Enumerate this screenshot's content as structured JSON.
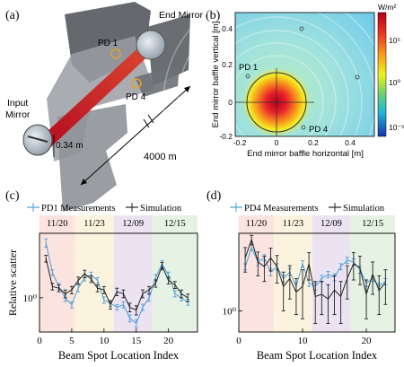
{
  "panels": {
    "a": "(a)",
    "b": "(b)",
    "c": "(c)",
    "d": "(d)"
  },
  "panel_a": {
    "end_mirror": "End Mirror",
    "input_mirror_line1": "Input",
    "input_mirror_line2": "Mirror",
    "pd1": "PD 1",
    "pd4": "PD 4",
    "dist_small": "0.34 m",
    "dist_large": "4000 m"
  },
  "panel_b": {
    "xlabel": "End mirror baffle horizontal [m]",
    "ylabel": "End mirror baffle vertical [m]",
    "colorbar_unit": "W/m²",
    "colorbar_ticks": [
      "10⁵",
      "10⁰",
      "10⁻⁵"
    ],
    "pd1": "PD 1",
    "pd4": "PD 4",
    "xticks": [
      "-0.2",
      "0",
      "0.2",
      "0.4"
    ],
    "yticks": [
      "0.4",
      "0.2",
      "0",
      "-0.2"
    ]
  },
  "chart_data": [
    {
      "type": "line",
      "panel": "c",
      "xlabel": "Beam Spot Location Index",
      "ylabel": "Relative scatter",
      "xlim": [
        0,
        24.5
      ],
      "log_y": true,
      "ylim": [
        0.45,
        4.5
      ],
      "yticks": [
        {
          "v": 1,
          "label": "10⁰"
        }
      ],
      "xticks": [
        0,
        5,
        10,
        15,
        20
      ],
      "date_bands": [
        {
          "label": "11/20",
          "from": 0,
          "to": 5.5,
          "color": "#fbe3df"
        },
        {
          "label": "11/23",
          "from": 5.5,
          "to": 11.5,
          "color": "#fcf3df"
        },
        {
          "label": "12/09",
          "from": 11.5,
          "to": 17.5,
          "color": "#ebe3f2"
        },
        {
          "label": "12/15",
          "from": 17.5,
          "to": 24.5,
          "color": "#e6f2e3"
        }
      ],
      "series": [
        {
          "name": "PD1 Measurements",
          "color": "#4f9fd6",
          "x": [
            1,
            2,
            3,
            4,
            5,
            6,
            7,
            8,
            9,
            10,
            11,
            12,
            13,
            14,
            15,
            16,
            17,
            18,
            19,
            20,
            21,
            22,
            23
          ],
          "y": [
            3.6,
            1.8,
            1.3,
            1.0,
            0.85,
            1.25,
            1.6,
            1.7,
            1.5,
            0.95,
            0.88,
            0.8,
            0.85,
            0.62,
            0.55,
            0.8,
            1.0,
            1.6,
            2.2,
            1.7,
            1.1,
            1.0,
            0.9
          ],
          "err": [
            0.35,
            0.12,
            0.1,
            0.08,
            0.06,
            0.1,
            0.12,
            0.12,
            0.1,
            0.07,
            0.06,
            0.05,
            0.06,
            0.05,
            0.05,
            0.06,
            0.08,
            0.12,
            0.18,
            0.12,
            0.08,
            0.07,
            0.06
          ]
        },
        {
          "name": "Simulation",
          "color": "#222222",
          "x": [
            1,
            2,
            3,
            4,
            5,
            6,
            7,
            8,
            9,
            10,
            11,
            12,
            13,
            14,
            15,
            16,
            17,
            18,
            19,
            20,
            21,
            22,
            23
          ],
          "y": [
            2.5,
            1.3,
            1.25,
            1.1,
            1.2,
            1.5,
            1.75,
            1.55,
            1.25,
            1.2,
            0.85,
            1.15,
            1.1,
            0.8,
            0.75,
            1.1,
            1.2,
            1.4,
            2.1,
            1.5,
            1.35,
            1.1,
            1.0
          ],
          "err": [
            0.2,
            0.1,
            0.1,
            0.1,
            0.1,
            0.12,
            0.15,
            0.12,
            0.1,
            0.1,
            0.08,
            0.1,
            0.1,
            0.08,
            0.08,
            0.1,
            0.1,
            0.12,
            0.18,
            0.12,
            0.11,
            0.1,
            0.09
          ]
        }
      ]
    },
    {
      "type": "line",
      "panel": "d",
      "xlabel": "Beam Spot Location Index",
      "ylabel": "",
      "xlim": [
        0,
        24.5
      ],
      "log_y": true,
      "ylim": [
        0.55,
        9
      ],
      "yticks": [
        {
          "v": 1,
          "label": "10⁰"
        }
      ],
      "xticks": [
        0,
        10,
        20
      ],
      "date_bands": [
        {
          "label": "11/20",
          "from": 0,
          "to": 5.5,
          "color": "#fbe3df"
        },
        {
          "label": "11/23",
          "from": 5.5,
          "to": 11.5,
          "color": "#fcf3df"
        },
        {
          "label": "12/09",
          "from": 11.5,
          "to": 17.5,
          "color": "#ebe3f2"
        },
        {
          "label": "12/15",
          "from": 17.5,
          "to": 24.5,
          "color": "#e6f2e3"
        }
      ],
      "series": [
        {
          "name": "PD4 Measurements",
          "color": "#4f9fd6",
          "x": [
            1,
            2,
            3,
            4,
            5,
            6,
            7,
            8,
            9,
            10,
            11,
            12,
            13,
            14,
            15,
            16,
            17,
            18,
            19,
            20,
            21,
            22,
            23
          ],
          "y": [
            3.5,
            6.0,
            4.0,
            4.5,
            3.0,
            3.5,
            2.5,
            3.0,
            2.0,
            3.8,
            2.2,
            2.0,
            2.5,
            2.8,
            2.6,
            3.5,
            4.2,
            4.0,
            3.2,
            2.2,
            2.5,
            2.0,
            2.3
          ],
          "err": [
            0.3,
            0.5,
            0.4,
            0.4,
            0.3,
            0.3,
            0.25,
            0.3,
            0.2,
            0.35,
            0.2,
            0.2,
            0.25,
            0.25,
            0.25,
            0.3,
            0.35,
            0.35,
            0.3,
            0.2,
            0.2,
            0.2,
            0.2
          ]
        },
        {
          "name": "Simulation",
          "color": "#222222",
          "x": [
            1,
            2,
            3,
            4,
            5,
            6,
            7,
            8,
            9,
            10,
            11,
            12,
            13,
            14,
            15,
            16,
            17,
            18,
            19,
            20,
            21,
            22,
            23
          ],
          "y": [
            4.5,
            7.5,
            4.0,
            3.5,
            4.5,
            3.5,
            2.0,
            2.5,
            1.7,
            2.0,
            3.8,
            1.5,
            1.6,
            1.4,
            1.8,
            1.5,
            2.5,
            3.8,
            3.4,
            1.6,
            2.8,
            1.8,
            2.2
          ],
          "err": [
            1.5,
            1.0,
            1.3,
            1.2,
            1.4,
            1.3,
            1.0,
            1.1,
            0.8,
            1.2,
            1.4,
            0.8,
            0.7,
            0.7,
            0.9,
            0.8,
            1.1,
            1.4,
            1.3,
            0.8,
            1.2,
            0.9,
            1.0
          ]
        }
      ]
    }
  ]
}
